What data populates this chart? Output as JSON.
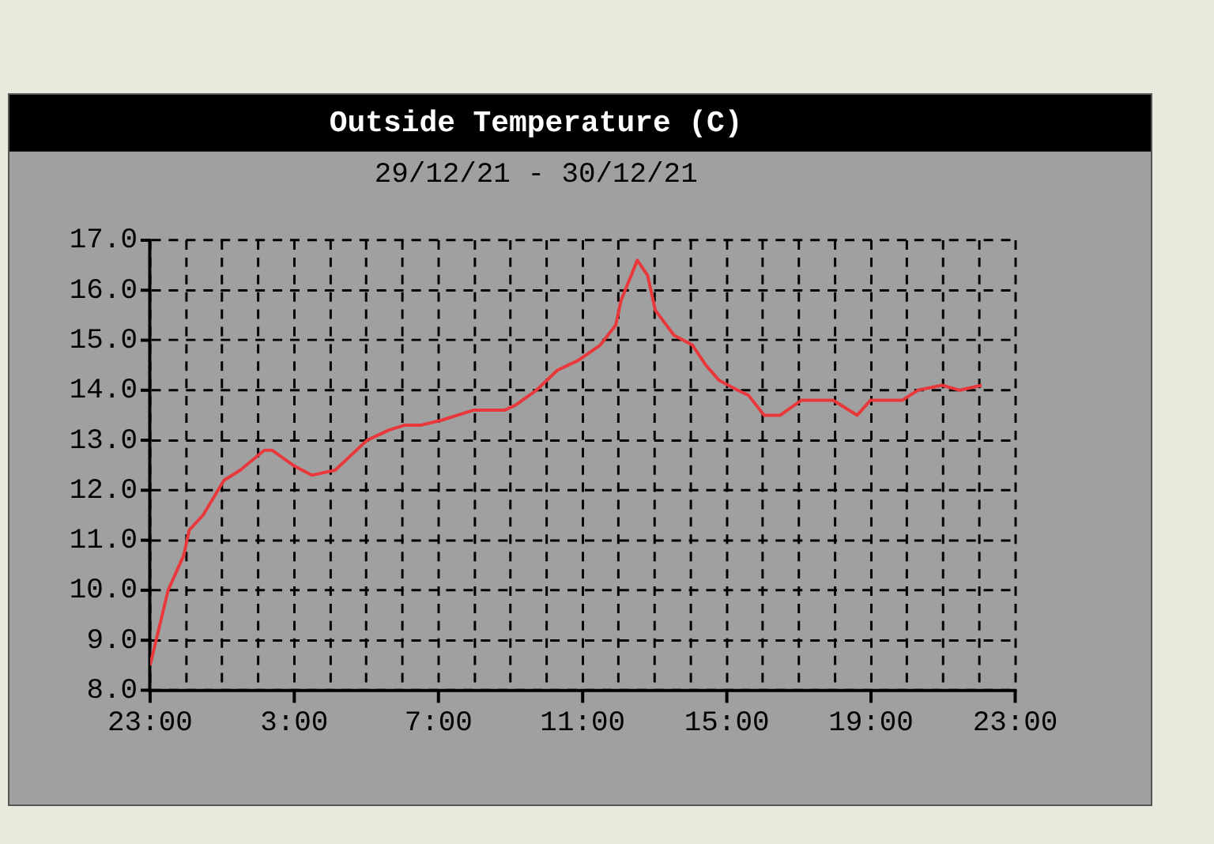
{
  "chart_data": {
    "type": "line",
    "title": "Outside Temperature (C)",
    "subtitle": "29/12/21 - 30/12/21",
    "x": [
      "--12-29T23:00",
      "--12-29T23:08",
      "--12-29T23:30",
      "--12-29T23:56",
      "--12-30T00:05",
      "--12-30T00:28",
      "--12-30T01:03",
      "--12-30T01:30",
      "--12-30T02:10",
      "--12-30T02:23",
      "--12-30T02:58",
      "--12-30T03:29",
      "--12-30T04:08",
      "--12-30T05:01",
      "--12-30T05:37",
      "--12-30T06:03",
      "--12-30T06:30",
      "--12-30T07:05",
      "--12-30T07:58",
      "--12-30T08:50",
      "--12-30T09:08",
      "--12-30T09:43",
      "--12-30T10:18",
      "--12-30T10:53",
      "--12-30T11:29",
      "--12-30T11:55",
      "--12-30T12:04",
      "--12-30T12:31",
      "--12-30T12:48",
      "--12-30T13:01",
      "--12-30T13:32",
      "--12-30T14:03",
      "--12-30T14:25",
      "--12-30T14:47",
      "--12-30T15:18",
      "--12-30T15:36",
      "--12-30T16:02",
      "--12-30T16:29",
      "--12-30T17:04",
      "--12-30T17:57",
      "--12-30T18:37",
      "--12-30T18:59",
      "--12-30T19:52",
      "--12-30T20:18",
      "--12-30T20:58",
      "--12-30T21:28",
      "--12-30T22:04"
    ],
    "series": [
      {
        "color": "#e8383c",
        "values": [
          8.5,
          8.9,
          10.0,
          10.7,
          11.2,
          11.5,
          12.2,
          12.4,
          12.8,
          12.8,
          12.5,
          12.3,
          12.4,
          13.0,
          13.2,
          13.3,
          13.3,
          13.4,
          13.6,
          13.6,
          13.7,
          14.0,
          14.4,
          14.6,
          14.9,
          15.3,
          15.8,
          16.6,
          16.3,
          15.6,
          15.1,
          14.9,
          14.5,
          14.2,
          14.0,
          13.9,
          13.5,
          13.5,
          13.8,
          13.8,
          13.5,
          13.8,
          13.8,
          14.0,
          14.1,
          14.0,
          14.1
        ]
      }
    ],
    "xlim": [
      "--12-29T23:00",
      "--12-30T23:00"
    ],
    "xticks": [
      {
        "value": "--12-29T23:00",
        "label": "23:00"
      },
      {
        "value": "--12-30T00:00",
        "label": null
      },
      {
        "value": "--12-30T01:00",
        "label": null
      },
      {
        "value": "--12-30T02:00",
        "label": null
      },
      {
        "value": "--12-30T03:00",
        "label": "3:00"
      },
      {
        "value": "--12-30T04:00",
        "label": null
      },
      {
        "value": "--12-30T05:00",
        "label": null
      },
      {
        "value": "--12-30T06:00",
        "label": null
      },
      {
        "value": "--12-30T07:00",
        "label": "7:00"
      },
      {
        "value": "--12-30T08:00",
        "label": null
      },
      {
        "value": "--12-30T09:00",
        "label": null
      },
      {
        "value": "--12-30T10:00",
        "label": null
      },
      {
        "value": "--12-30T11:00",
        "label": "11:00"
      },
      {
        "value": "--12-30T12:00",
        "label": null
      },
      {
        "value": "--12-30T13:00",
        "label": null
      },
      {
        "value": "--12-30T14:00",
        "label": null
      },
      {
        "value": "--12-30T15:00",
        "label": "15:00"
      },
      {
        "value": "--12-30T16:00",
        "label": null
      },
      {
        "value": "--12-30T17:00",
        "label": null
      },
      {
        "value": "--12-30T18:00",
        "label": null
      },
      {
        "value": "--12-30T19:00",
        "label": "19:00"
      },
      {
        "value": "--12-30T20:00",
        "label": null
      },
      {
        "value": "--12-30T21:00",
        "label": null
      },
      {
        "value": "--12-30T22:00",
        "label": null
      },
      {
        "value": "--12-30T23:00",
        "label": "23:00"
      }
    ],
    "ylim": [
      8,
      17
    ],
    "yticks": [
      {
        "value": 8,
        "label": "8.0"
      },
      {
        "value": 9,
        "label": "9.0"
      },
      {
        "value": 10,
        "label": "10.0"
      },
      {
        "value": 11,
        "label": "11.0"
      },
      {
        "value": 12,
        "label": "12.0"
      },
      {
        "value": 13,
        "label": "13.0"
      },
      {
        "value": 14,
        "label": "14.0"
      },
      {
        "value": 15,
        "label": "15.0"
      },
      {
        "value": 16,
        "label": "16.0"
      },
      {
        "value": 17,
        "label": "17.0"
      }
    ],
    "grid": true,
    "line_style": "solid",
    "marker": "none",
    "legend": false
  }
}
